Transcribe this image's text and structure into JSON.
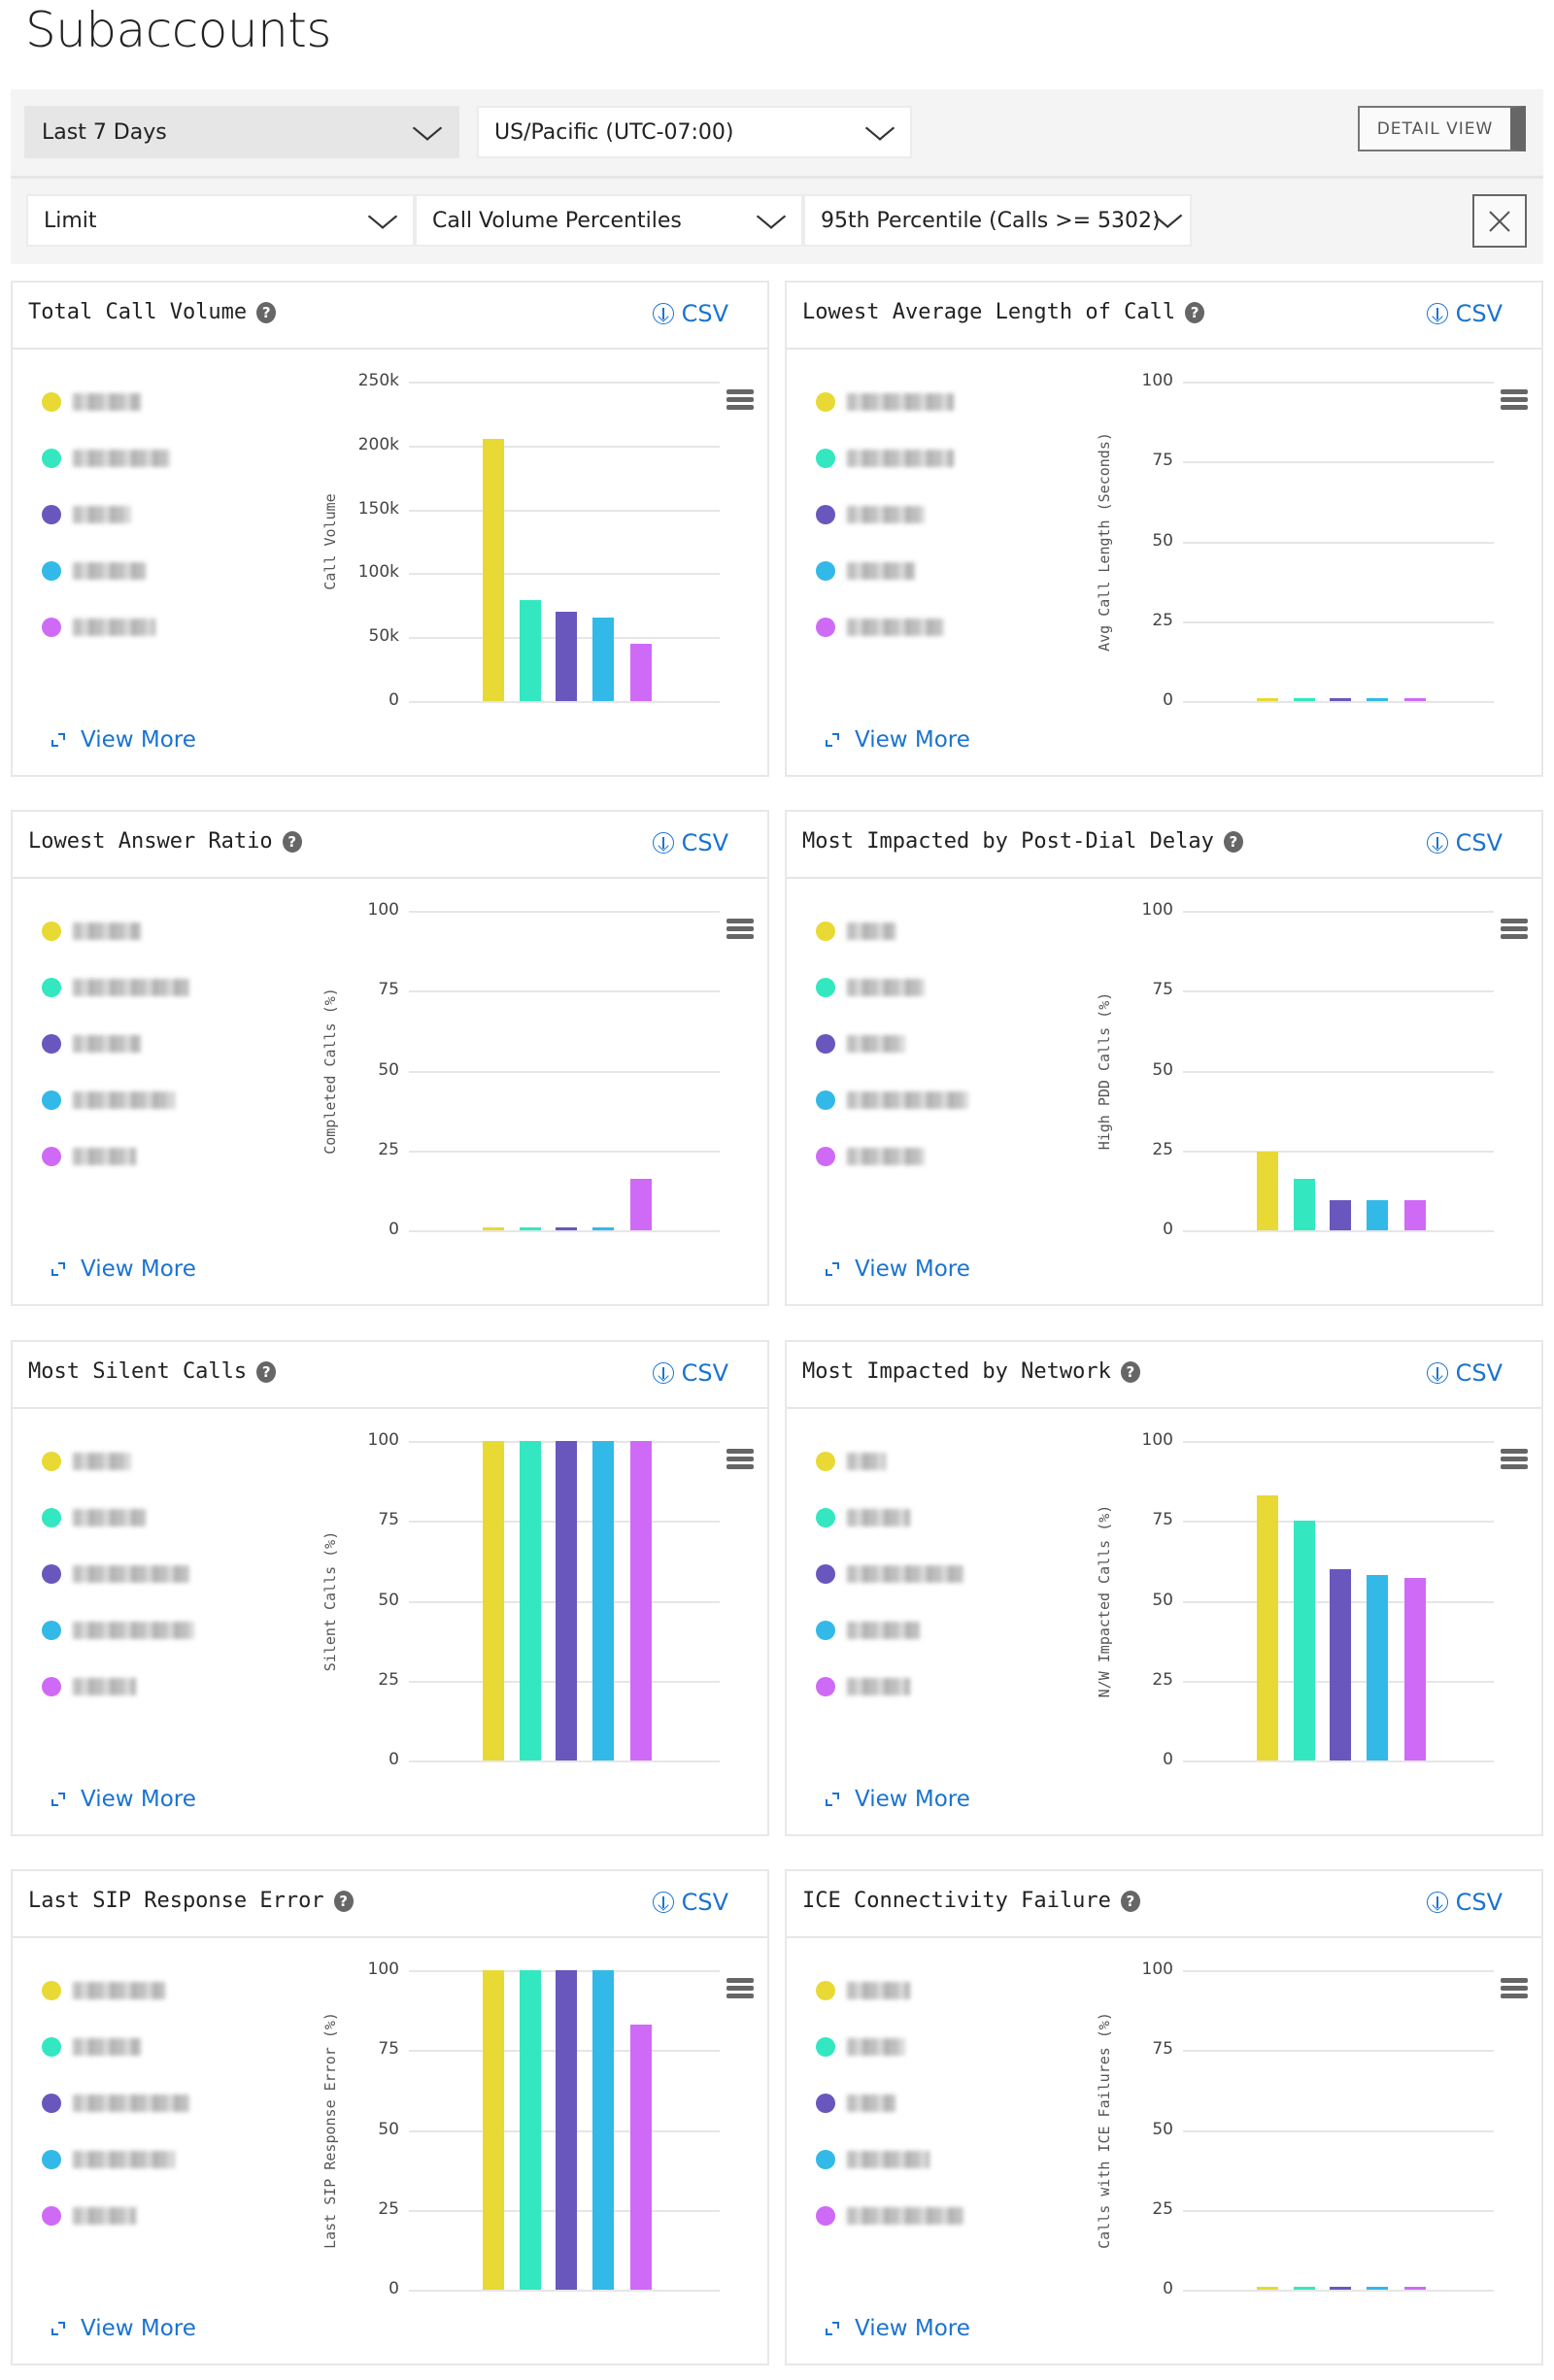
{
  "page_title": "Subaccounts",
  "toolbar": {
    "date_range": "Last 7 Days",
    "timezone": "US/Pacific (UTC-07:00)",
    "detail_view_label": "DETAIL VIEW",
    "filter_limit": "Limit",
    "filter_metric": "Call Volume Percentiles",
    "filter_value": "95th Percentile (Calls >= 5302)"
  },
  "card_common": {
    "csv_label": "CSV",
    "view_more_label": "View More",
    "help_glyph": "?"
  },
  "series_colors": [
    "#e8d934",
    "#33e8c0",
    "#6a57bd",
    "#33b9e8",
    "#cf6af7"
  ],
  "chart_data": [
    {
      "type": "bar",
      "title": "Total Call Volume",
      "ylabel": "Call Volume",
      "ylim": [
        0,
        250000
      ],
      "ticks": [
        "0",
        "50k",
        "100k",
        "150k",
        "200k",
        "250k"
      ],
      "values": [
        205000,
        79000,
        70000,
        65000,
        45000
      ]
    },
    {
      "type": "bar",
      "title": "Lowest Average Length of Call",
      "ylabel": "Avg Call Length (Seconds)",
      "ylim": [
        0,
        100
      ],
      "ticks": [
        "0",
        "25",
        "50",
        "75",
        "100"
      ],
      "values": [
        1,
        1,
        1,
        1,
        1
      ]
    },
    {
      "type": "bar",
      "title": "Lowest Answer Ratio",
      "ylabel": "Completed Calls (%)",
      "ylim": [
        0,
        100
      ],
      "ticks": [
        "0",
        "25",
        "50",
        "75",
        "100"
      ],
      "values": [
        1,
        1,
        1,
        1,
        16
      ]
    },
    {
      "type": "bar",
      "title": "Most Impacted by Post-Dial Delay",
      "ylabel": "High PDD Calls (%)",
      "ylim": [
        0,
        100
      ],
      "ticks": [
        "0",
        "25",
        "50",
        "75",
        "100"
      ],
      "values": [
        24.5,
        16,
        9.5,
        9.5,
        9.5
      ]
    },
    {
      "type": "bar",
      "title": "Most Silent Calls",
      "ylabel": "Silent Calls (%)",
      "ylim": [
        0,
        100
      ],
      "ticks": [
        "0",
        "25",
        "50",
        "75",
        "100"
      ],
      "values": [
        100,
        100,
        100,
        100,
        100
      ]
    },
    {
      "type": "bar",
      "title": "Most Impacted by Network",
      "ylabel": "N/W Impacted Calls (%)",
      "ylim": [
        0,
        100
      ],
      "ticks": [
        "0",
        "25",
        "50",
        "75",
        "100"
      ],
      "values": [
        83,
        75,
        60,
        58,
        57
      ]
    },
    {
      "type": "bar",
      "title": "Last SIP Response Error",
      "ylabel": "Last SIP Response Error (%)",
      "ylim": [
        0,
        100
      ],
      "ticks": [
        "0",
        "25",
        "50",
        "75",
        "100"
      ],
      "values": [
        100,
        100,
        100,
        100,
        83
      ]
    },
    {
      "type": "bar",
      "title": "ICE Connectivity Failure",
      "ylabel": "Calls with ICE Failures (%)",
      "ylim": [
        0,
        100
      ],
      "ticks": [
        "0",
        "25",
        "50",
        "75",
        "100"
      ],
      "values": [
        1,
        1,
        1,
        1,
        1
      ]
    }
  ]
}
